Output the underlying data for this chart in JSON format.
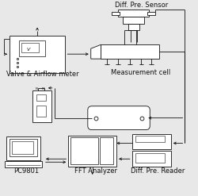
{
  "bg_color": "#e8e8e8",
  "fig_bg": "#e8e8e8",
  "labels": {
    "diff_pre_sensor": "Diff. Pre. Sensor",
    "measurement_cell": "Measurement cell",
    "valve_airflow": "Valve & Airflow meter",
    "pc9801": "PC9801",
    "fft_analyzer": "FFT Analyzer",
    "diff_pre_reader": "Diff. Pre. Reader"
  },
  "font_size": 6.0
}
